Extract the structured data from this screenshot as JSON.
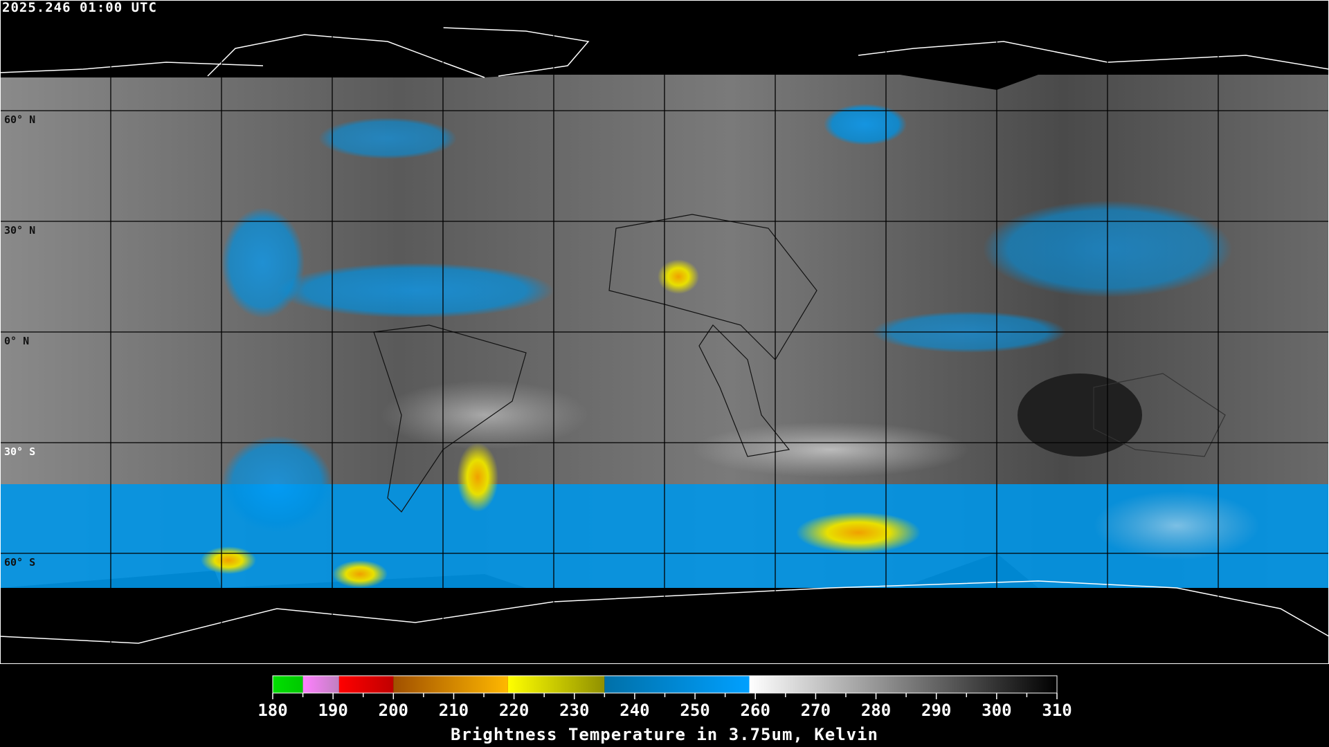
{
  "header": {
    "timestamp": "2025.246 01:00 UTC"
  },
  "map": {
    "projection": "equirectangular",
    "grid_lines": true,
    "lat_labels": [
      "60° N",
      "30° N",
      "0° N",
      "30° S",
      "60° S"
    ],
    "colors": {
      "background": "#000000",
      "grid": "#000000",
      "coastline": "#ffffff"
    }
  },
  "colorbar": {
    "title": "Brightness Temperature in 3.75um, Kelvin",
    "range": [
      180,
      310
    ],
    "tick_labels": [
      "180",
      "190",
      "200",
      "210",
      "220",
      "230",
      "240",
      "250",
      "260",
      "270",
      "280",
      "290",
      "300",
      "310"
    ],
    "segments": [
      {
        "from": 180,
        "to": 185,
        "colors": [
          "#00e000",
          "#00c800"
        ]
      },
      {
        "from": 185,
        "to": 191,
        "colors": [
          "#ff80ff",
          "#c080c0"
        ]
      },
      {
        "from": 191,
        "to": 200,
        "colors": [
          "#ff0000",
          "#c00000"
        ]
      },
      {
        "from": 200,
        "to": 219,
        "colors": [
          "#a05000",
          "#ffb800"
        ]
      },
      {
        "from": 219,
        "to": 235,
        "colors": [
          "#ffff00",
          "#909000"
        ]
      },
      {
        "from": 235,
        "to": 259,
        "colors": [
          "#0070a8",
          "#00a0ff"
        ]
      },
      {
        "from": 259,
        "to": 310,
        "colors": [
          "#ffffff",
          "#000000"
        ]
      }
    ]
  }
}
